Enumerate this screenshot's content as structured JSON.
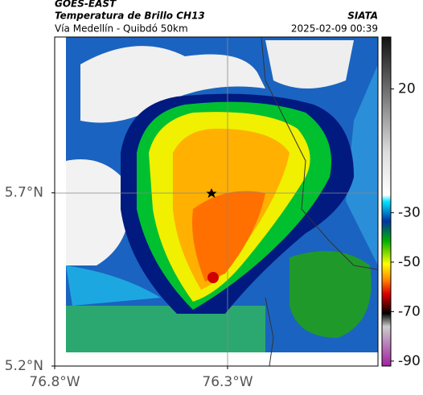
{
  "header": {
    "title": "GOES-EAST",
    "subtitle": "Temperatura de Brillo CH13",
    "location": "Vía Medellín - Quibdó 50km",
    "source": "SIATA",
    "datetime": "2025-02-09 00:39"
  },
  "map": {
    "xlim": [
      -76.8,
      -75.865
    ],
    "ylim": [
      5.2,
      6.15
    ],
    "xticks": [
      {
        "value": -76.8,
        "label": "76.8°W"
      },
      {
        "value": -76.3,
        "label": "76.3°W"
      }
    ],
    "yticks": [
      {
        "value": 5.2,
        "label": "5.2°N"
      },
      {
        "value": 5.7,
        "label": "5.7°N"
      }
    ]
  },
  "colorbar": {
    "lim": [
      -92,
      41
    ],
    "ticks": [
      20,
      -30,
      -50,
      -70,
      -90
    ]
  }
}
